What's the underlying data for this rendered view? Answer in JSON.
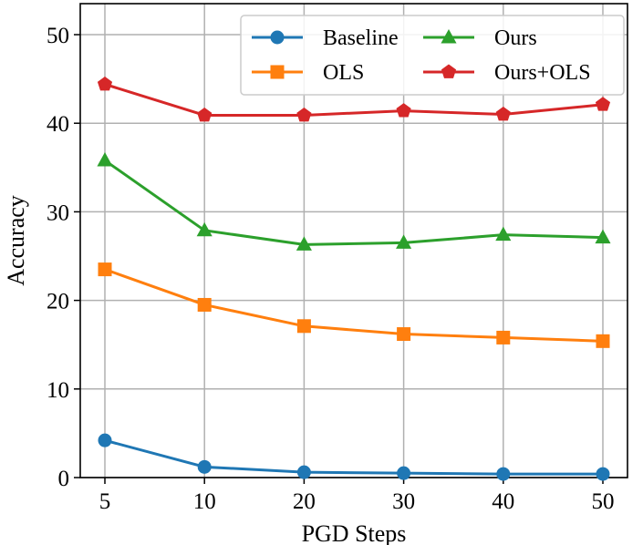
{
  "chart_data": {
    "type": "line",
    "xlabel": "PGD Steps",
    "ylabel": "Accuracy",
    "categories": [
      "5",
      "10",
      "20",
      "30",
      "40",
      "50"
    ],
    "ylim": [
      0,
      53.5
    ],
    "yticks": [
      0,
      10,
      20,
      30,
      40,
      50
    ],
    "grid": true,
    "legend_position": "top-right",
    "legend_columns": 2,
    "series": [
      {
        "name": "Baseline",
        "color": "#1f77b4",
        "marker": "circle",
        "values": [
          4.2,
          1.2,
          0.6,
          0.5,
          0.4,
          0.4
        ]
      },
      {
        "name": "OLS",
        "color": "#ff7f0e",
        "marker": "square",
        "values": [
          23.5,
          19.5,
          17.1,
          16.2,
          15.8,
          15.4
        ]
      },
      {
        "name": "Ours",
        "color": "#2ca02c",
        "marker": "triangle",
        "values": [
          35.8,
          27.9,
          26.3,
          26.5,
          27.4,
          27.1
        ]
      },
      {
        "name": "Ours+OLS",
        "color": "#d62728",
        "marker": "pentagon",
        "values": [
          44.4,
          40.9,
          40.9,
          41.4,
          41.0,
          42.1
        ]
      }
    ],
    "legend_order": [
      "Baseline",
      "Ours",
      "OLS",
      "Ours+OLS"
    ]
  }
}
